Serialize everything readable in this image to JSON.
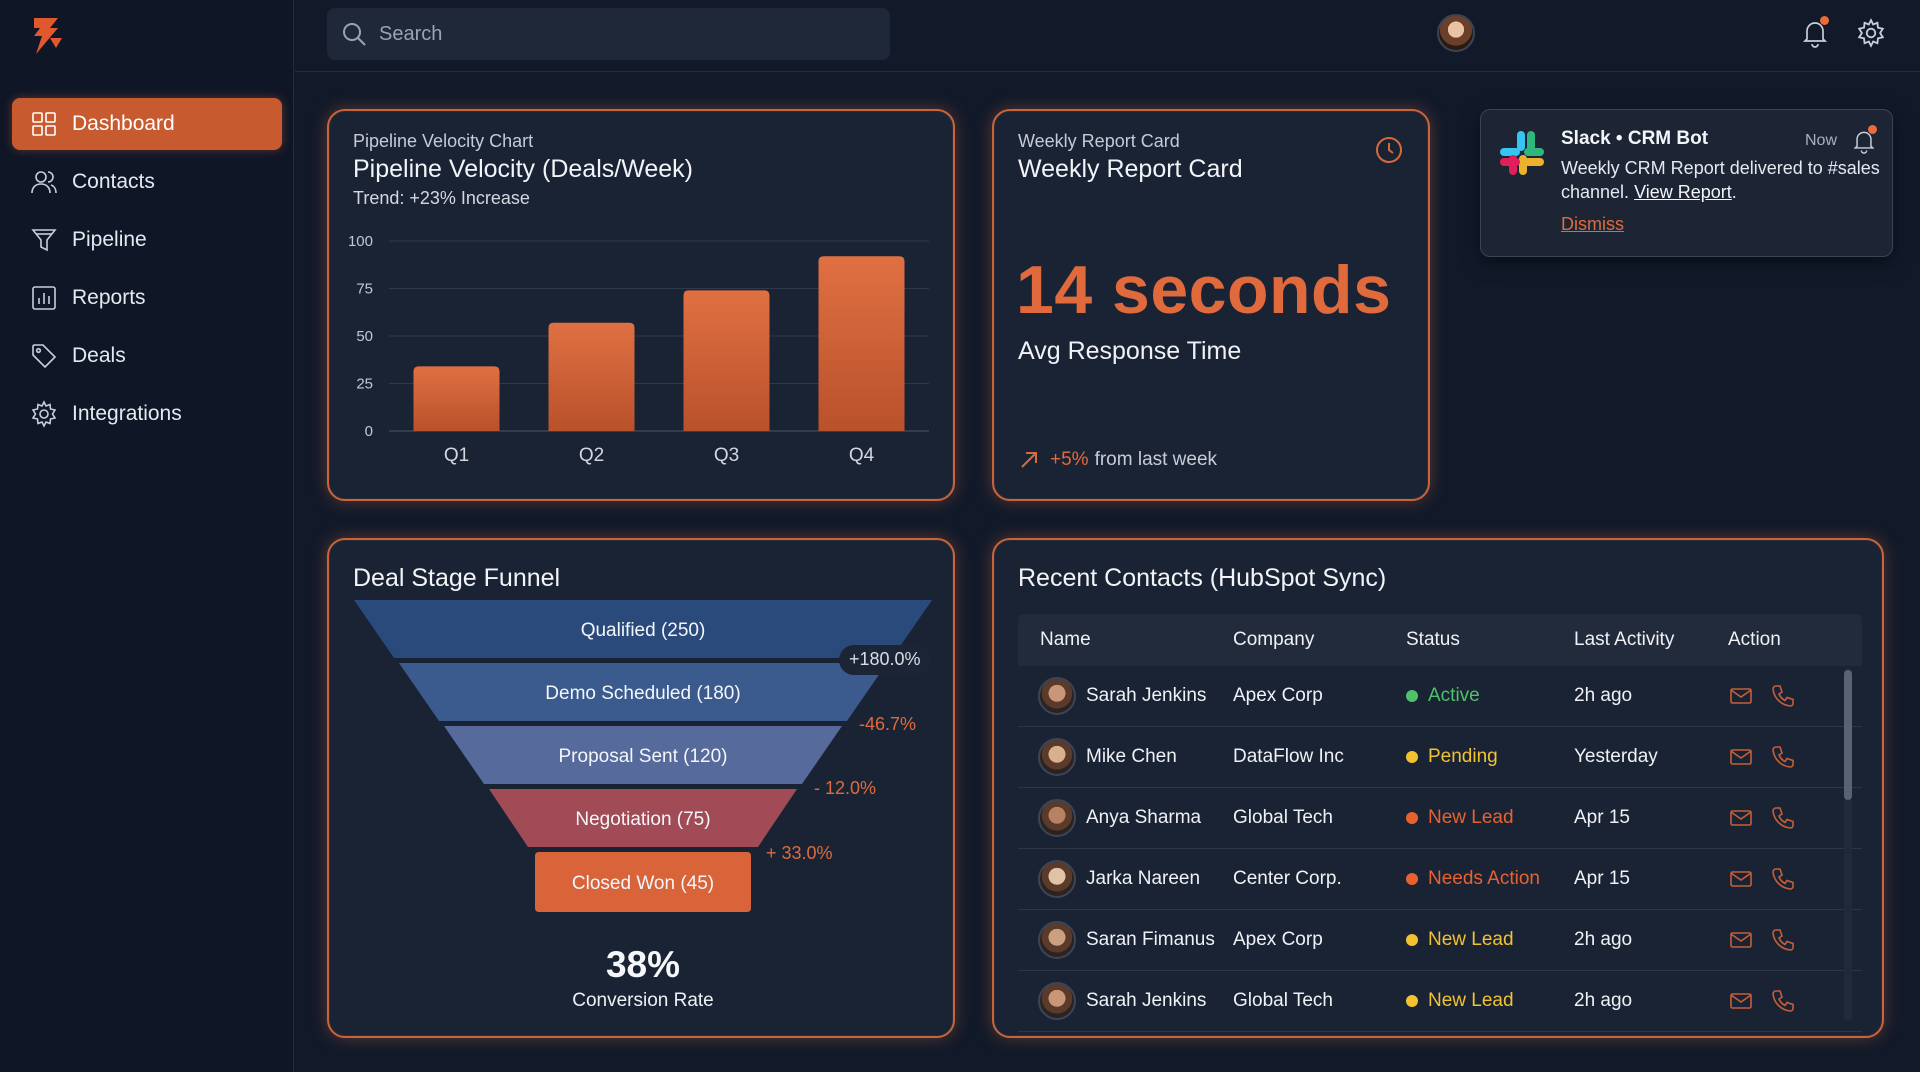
{
  "search": {
    "placeholder": "Search"
  },
  "sidebar": {
    "items": [
      {
        "label": "Dashboard",
        "icon": "grid-icon",
        "active": true
      },
      {
        "label": "Contacts",
        "icon": "users-icon"
      },
      {
        "label": "Pipeline",
        "icon": "funnel-icon"
      },
      {
        "label": "Reports",
        "icon": "bar-chart-icon"
      },
      {
        "label": "Deals",
        "icon": "tag-icon"
      },
      {
        "label": "Integrations",
        "icon": "gear-icon"
      }
    ]
  },
  "colors": {
    "accent": "#d9643a",
    "background": "#121a2a",
    "card": "#1a2334",
    "active": "#4fc16a",
    "pending": "#f2c230",
    "lead": "#e8622f"
  },
  "pipeline": {
    "subtitle": "Pipeline Velocity Chart",
    "title": "Pipeline Velocity (Deals/Week)",
    "trend": "Trend: +23% Increase"
  },
  "chart_data": {
    "type": "bar",
    "title": "Pipeline Velocity (Deals/Week)",
    "categories": [
      "Q1",
      "Q2",
      "Q3",
      "Q4"
    ],
    "values": [
      34,
      57,
      74,
      92
    ],
    "ylim": [
      0,
      100
    ],
    "yticks": [
      0,
      25,
      50,
      75,
      100
    ],
    "grid": true,
    "color": "#d9643a"
  },
  "weekly": {
    "subtitle": "Weekly Report Card",
    "title": "Weekly Report Card",
    "metric": "14 seconds",
    "metric_label": "Avg Response Time",
    "delta": "+5%",
    "delta_text": "from last week"
  },
  "toast": {
    "title": "Slack • CRM Bot",
    "time": "Now",
    "body": "Weekly CRM Report delivered to #sales channel.",
    "link": "View Report",
    "link_suffix": ".",
    "dismiss": "Dismiss"
  },
  "funnel": {
    "title": "Deal Stage Funnel",
    "stages": [
      {
        "label": "Qualified (250)",
        "color": "#2b4a7c"
      },
      {
        "label": "Demo Scheduled (180)",
        "color": "#3b5a8e"
      },
      {
        "label": "Proposal Sent (120)",
        "color": "#566a9c"
      },
      {
        "label": "Negotiation (75)",
        "color": "#a04b55"
      },
      {
        "label": "Closed Won (45)",
        "color": "#d9643a"
      }
    ],
    "changes": [
      "+180.0%",
      "-46.7%",
      "- 12.0%",
      "+ 33.0%"
    ],
    "conversion": "38%",
    "conversion_label": "Conversion Rate"
  },
  "contacts": {
    "title": "Recent Contacts (HubSpot Sync)",
    "columns": [
      "Name",
      "Company",
      "Status",
      "Last Activity",
      "Action"
    ],
    "rows": [
      {
        "name": "Sarah Jenkins",
        "company": "Apex Corp",
        "status": "Active",
        "status_kind": "active",
        "activity": "2h ago"
      },
      {
        "name": "Mike Chen",
        "company": "DataFlow Inc",
        "status": "Pending",
        "status_kind": "pending",
        "activity": "Yesterday"
      },
      {
        "name": "Anya Sharma",
        "company": "Global Tech",
        "status": "New Lead",
        "status_kind": "lead",
        "activity": "Apr 15"
      },
      {
        "name": "Jarka Nareen",
        "company": "Center Corp.",
        "status": "Needs Action",
        "status_kind": "lead",
        "activity": "Apr 15"
      },
      {
        "name": "Saran Fimanus",
        "company": "Apex Corp",
        "status": "New Lead",
        "status_kind": "pending",
        "activity": "2h ago"
      },
      {
        "name": "Sarah Jenkins",
        "company": "Global Tech",
        "status": "New Lead",
        "status_kind": "pending",
        "activity": "2h ago"
      }
    ]
  }
}
